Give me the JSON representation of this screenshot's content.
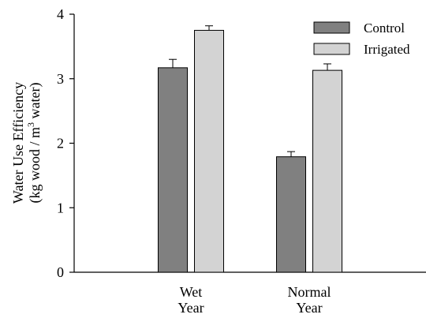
{
  "chart_data": {
    "type": "bar",
    "title": "",
    "xlabel": "",
    "ylabel_line1": "Water Use Efficiency",
    "ylabel_line2_pre": "(kg wood / m",
    "ylabel_line2_sup": "3",
    "ylabel_line2_post": " water)",
    "ylim": [
      0,
      4
    ],
    "yticks": [
      0,
      1,
      2,
      3,
      4
    ],
    "categories": [
      {
        "line1": "Wet",
        "line2": "Year"
      },
      {
        "line1": "Normal",
        "line2": "Year"
      }
    ],
    "series": [
      {
        "name": "Control",
        "color": "#808080",
        "values": [
          3.17,
          1.79
        ],
        "errors": [
          0.13,
          0.08
        ]
      },
      {
        "name": "Irrigated",
        "color": "#d3d3d3",
        "values": [
          3.75,
          3.13
        ],
        "errors": [
          0.07,
          0.1
        ]
      }
    ],
    "legend_position": "top-right",
    "grid": false,
    "error_bars": "upper"
  }
}
